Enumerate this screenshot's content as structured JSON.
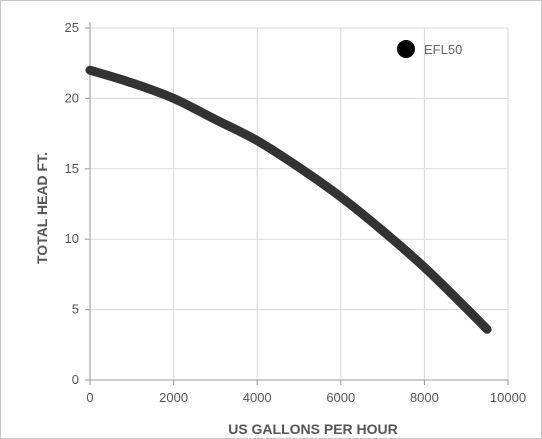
{
  "chart_data": {
    "type": "line",
    "xlabel": "US GALLONS PER HOUR",
    "ylabel": "TOTAL HEAD FT.",
    "xlim": [
      0,
      10000
    ],
    "ylim": [
      0,
      25
    ],
    "xticks": [
      "0",
      "2000",
      "4000",
      "6000",
      "8000",
      "10000"
    ],
    "yticks": [
      "0",
      "5",
      "10",
      "15",
      "20",
      "25"
    ],
    "grid": true,
    "legend_position": "top-right",
    "series": [
      {
        "name": "EFL50",
        "color": "#333333",
        "x": [
          0,
          1000,
          2000,
          3000,
          4000,
          5000,
          6000,
          7000,
          8000,
          9000,
          9500
        ],
        "y": [
          22,
          21.1,
          20,
          18.5,
          17,
          15.1,
          13,
          10.6,
          8,
          5.1,
          3.6
        ]
      }
    ]
  }
}
